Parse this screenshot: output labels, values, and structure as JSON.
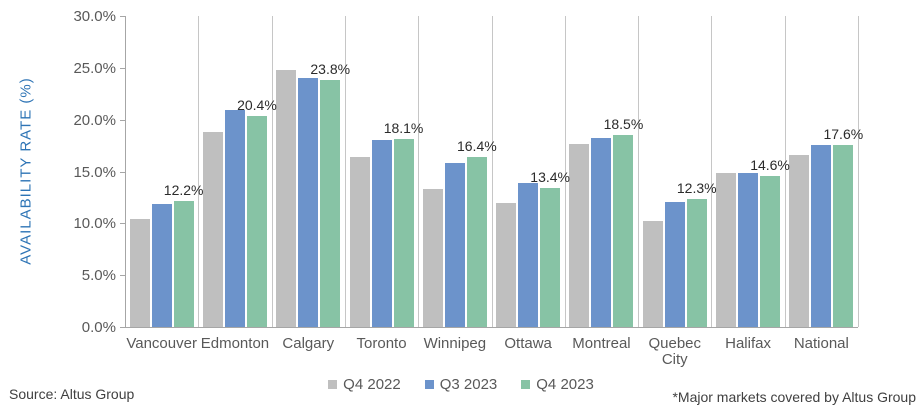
{
  "chart_data": {
    "type": "bar",
    "title": "",
    "xlabel": "",
    "ylabel": "AVAILABILITY RATE (%)",
    "ylim": [
      0,
      30
    ],
    "y_tick_step": 5,
    "y_ticks": [
      "30.0%",
      "25.0%",
      "20.0%",
      "15.0%",
      "10.0%",
      "5.0%",
      "0.0%"
    ],
    "grid": "vertical-category-boundaries",
    "legend_position": "bottom-center",
    "categories": [
      "Vancouver",
      "Edmonton",
      "Calgary",
      "Toronto",
      "Winnipeg",
      "Ottawa",
      "Montreal",
      "Quebec City",
      "Halifax",
      "National"
    ],
    "series": [
      {
        "name": "Q4 2022",
        "color": "#BFBFBF",
        "values": [
          10.4,
          18.8,
          24.8,
          16.4,
          13.3,
          12.0,
          17.7,
          10.2,
          14.9,
          16.6
        ]
      },
      {
        "name": "Q3 2023",
        "color": "#6C93CB",
        "values": [
          11.9,
          20.9,
          24.0,
          18.0,
          15.8,
          13.9,
          18.2,
          12.1,
          14.9,
          17.6
        ]
      },
      {
        "name": "Q4 2023",
        "color": "#87C3A5",
        "values": [
          12.2,
          20.4,
          23.8,
          18.1,
          16.4,
          13.4,
          18.5,
          12.3,
          14.6,
          17.6
        ],
        "data_labels": [
          "12.2%",
          "20.4%",
          "23.8%",
          "18.1%",
          "16.4%",
          "13.4%",
          "18.5%",
          "12.3%",
          "14.6%",
          "17.6%"
        ]
      }
    ]
  },
  "footer": {
    "source": "Source: Altus Group",
    "footnote": "*Major markets covered by Altus Group"
  },
  "style": {
    "axis_color": "#A6A6A6",
    "grid_color": "#C6C6C6",
    "tick_label_color": "#595959",
    "data_label_color": "#2B2B2B",
    "y_title_color": "#2E74B5",
    "footer_text_color": "#404040",
    "background": "#FFFFFF"
  }
}
